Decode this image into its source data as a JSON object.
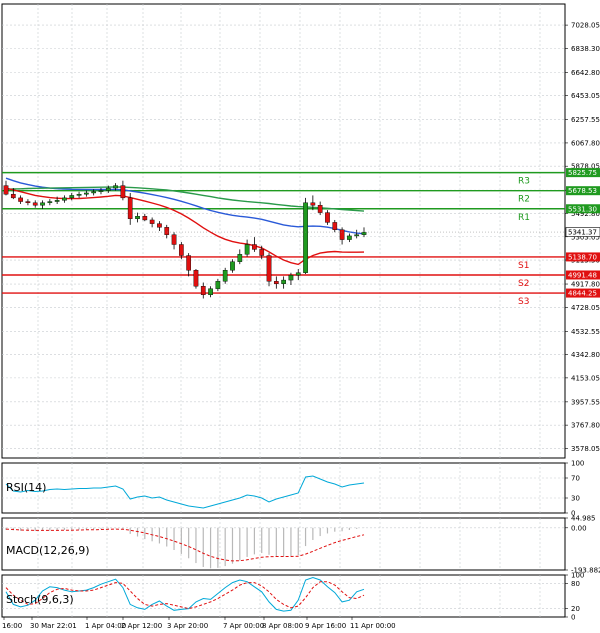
{
  "chart_data": [
    {
      "type": "candlestick",
      "panel": "price",
      "ylim": [
        3500,
        7200
      ],
      "y_ticks": [
        "7028.05",
        "6838.30",
        "6642.80",
        "6453.05",
        "6257.55",
        "6067.80",
        "5878.05",
        "5682.55",
        "5492.80",
        "5303.05",
        "5113.30",
        "4917.80",
        "4728.05",
        "4532.55",
        "4342.80",
        "4153.05",
        "3957.55",
        "3767.80",
        "3578.05"
      ],
      "x_ticks": [
        "16:00",
        "30 Mar 22:01",
        "1 Apr 04:00",
        "2 Apr 12:00",
        "3 Apr 20:00",
        "7 Apr 00:00",
        "8 Apr 08:00",
        "9 Apr 16:00",
        "11 Apr 00:00"
      ],
      "current_price": "5341.37",
      "grid": true,
      "levels": [
        {
          "name": "R3",
          "value": "5825.75",
          "color": "#1f9a1f"
        },
        {
          "name": "R2",
          "value": "5678.53",
          "color": "#1f9a1f"
        },
        {
          "name": "R1",
          "value": "5531.30",
          "color": "#1f9a1f"
        },
        {
          "name": "S1",
          "value": "5138.70",
          "color": "#e01010"
        },
        {
          "name": "S2",
          "value": "4991.48",
          "color": "#e01010"
        },
        {
          "name": "S3",
          "value": "4844.25",
          "color": "#e01010"
        }
      ],
      "candles": [
        [
          5720,
          5760,
          5640,
          5650
        ],
        [
          5650,
          5700,
          5610,
          5620
        ],
        [
          5620,
          5640,
          5570,
          5590
        ],
        [
          5590,
          5610,
          5560,
          5580
        ],
        [
          5580,
          5600,
          5540,
          5560
        ],
        [
          5560,
          5600,
          5530,
          5580
        ],
        [
          5580,
          5610,
          5560,
          5590
        ],
        [
          5590,
          5630,
          5570,
          5600
        ],
        [
          5600,
          5640,
          5580,
          5620
        ],
        [
          5620,
          5660,
          5600,
          5640
        ],
        [
          5640,
          5670,
          5620,
          5650
        ],
        [
          5650,
          5680,
          5630,
          5660
        ],
        [
          5660,
          5690,
          5640,
          5670
        ],
        [
          5670,
          5700,
          5650,
          5680
        ],
        [
          5680,
          5720,
          5660,
          5700
        ],
        [
          5700,
          5740,
          5680,
          5720
        ],
        [
          5720,
          5760,
          5600,
          5620
        ],
        [
          5620,
          5660,
          5400,
          5450
        ],
        [
          5450,
          5500,
          5420,
          5470
        ],
        [
          5470,
          5490,
          5430,
          5440
        ],
        [
          5440,
          5460,
          5380,
          5410
        ],
        [
          5410,
          5430,
          5350,
          5380
        ],
        [
          5380,
          5400,
          5290,
          5320
        ],
        [
          5320,
          5340,
          5200,
          5240
        ],
        [
          5240,
          5260,
          5120,
          5150
        ],
        [
          5150,
          5170,
          4980,
          5030
        ],
        [
          5030,
          5040,
          4880,
          4900
        ],
        [
          4900,
          4930,
          4800,
          4830
        ],
        [
          4830,
          4900,
          4810,
          4880
        ],
        [
          4880,
          4960,
          4860,
          4940
        ],
        [
          4940,
          5050,
          4920,
          5030
        ],
        [
          5030,
          5120,
          5010,
          5100
        ],
        [
          5100,
          5200,
          5080,
          5160
        ],
        [
          5160,
          5280,
          5140,
          5240
        ],
        [
          5240,
          5300,
          5180,
          5200
        ],
        [
          5200,
          5230,
          5120,
          5150
        ],
        [
          5150,
          5170,
          4900,
          4940
        ],
        [
          4940,
          4980,
          4880,
          4920
        ],
        [
          4920,
          4980,
          4880,
          4950
        ],
        [
          4950,
          5010,
          4910,
          4990
        ],
        [
          4990,
          5040,
          4950,
          5010
        ],
        [
          5010,
          5620,
          5000,
          5580
        ],
        [
          5580,
          5640,
          5520,
          5560
        ],
        [
          5560,
          5590,
          5480,
          5500
        ],
        [
          5500,
          5520,
          5400,
          5420
        ],
        [
          5420,
          5440,
          5340,
          5360
        ],
        [
          5360,
          5380,
          5240,
          5280
        ],
        [
          5280,
          5330,
          5260,
          5310
        ],
        [
          5310,
          5360,
          5290,
          5320
        ],
        [
          5320,
          5380,
          5300,
          5340
        ]
      ],
      "series": [
        {
          "name": "",
          "color": "#2a5ad8",
          "values": [
            5780,
            5760,
            5742,
            5728,
            5716,
            5707,
            5700,
            5695,
            5692,
            5690,
            5689,
            5688,
            5688,
            5688,
            5688,
            5688,
            5686,
            5677,
            5668,
            5658,
            5647,
            5635,
            5622,
            5608,
            5592,
            5574,
            5555,
            5535,
            5517,
            5502,
            5489,
            5478,
            5470,
            5463,
            5455,
            5445,
            5430,
            5414,
            5400,
            5390,
            5384,
            5388,
            5390,
            5388,
            5381,
            5370,
            5355,
            5343,
            5333,
            5327
          ]
        },
        {
          "name": "",
          "color": "#2a9a4a",
          "values": [
            5690,
            5692,
            5694,
            5696,
            5698,
            5699,
            5700,
            5701,
            5702,
            5703,
            5704,
            5705,
            5706,
            5707,
            5708,
            5709,
            5708,
            5705,
            5702,
            5698,
            5694,
            5689,
            5684,
            5677,
            5669,
            5660,
            5650,
            5640,
            5630,
            5620,
            5611,
            5603,
            5596,
            5590,
            5585,
            5580,
            5574,
            5567,
            5560,
            5554,
            5549,
            5546,
            5543,
            5539,
            5535,
            5530,
            5525,
            5520,
            5516,
            5512
          ]
        },
        {
          "name": "",
          "color": "#e01010",
          "values": [
            5700,
            5685,
            5670,
            5655,
            5640,
            5630,
            5622,
            5617,
            5614,
            5614,
            5615,
            5618,
            5622,
            5627,
            5633,
            5640,
            5637,
            5622,
            5608,
            5594,
            5578,
            5562,
            5542,
            5518,
            5489,
            5455,
            5417,
            5376,
            5340,
            5308,
            5282,
            5264,
            5251,
            5243,
            5230,
            5212,
            5180,
            5145,
            5114,
            5092,
            5078,
            5120,
            5150,
            5170,
            5179,
            5183,
            5178,
            5177,
            5177,
            5178
          ]
        }
      ]
    },
    {
      "type": "line",
      "panel": "RSI(14)",
      "title": "RSI(14)",
      "ylim": [
        0,
        100
      ],
      "y_ticks": [
        "100",
        "70",
        "30",
        "0"
      ],
      "series": [
        {
          "name": "",
          "color": "#00a8d8",
          "values": [
            58,
            44,
            42,
            45,
            43,
            44,
            47,
            48,
            47,
            48,
            49,
            49,
            50,
            50,
            52,
            54,
            48,
            28,
            32,
            34,
            30,
            32,
            26,
            22,
            18,
            14,
            12,
            10,
            14,
            18,
            22,
            26,
            30,
            36,
            34,
            30,
            22,
            28,
            32,
            36,
            40,
            72,
            74,
            68,
            62,
            58,
            52,
            56,
            58,
            60
          ]
        }
      ]
    },
    {
      "type": "bar",
      "panel": "MACD(12,26,9)",
      "title": "MACD(12,26,9)",
      "ylim": [
        -193.882,
        44.985
      ],
      "y_ticks": [
        "44.985",
        "0.00",
        "-193.882"
      ],
      "values": [
        -10,
        -12,
        -14,
        -15,
        -15,
        -14,
        -13,
        -12,
        -10,
        -9,
        -8,
        -7,
        -6,
        -5,
        -3,
        -2,
        -8,
        -28,
        -40,
        -52,
        -62,
        -72,
        -86,
        -102,
        -120,
        -140,
        -162,
        -180,
        -186,
        -184,
        -176,
        -165,
        -150,
        -134,
        -122,
        -116,
        -124,
        -130,
        -132,
        -130,
        -126,
        -84,
        -56,
        -38,
        -26,
        -18,
        -16,
        -10,
        -5,
        -1
      ],
      "series": [
        {
          "name": "",
          "color": "#e01010",
          "values": [
            -6,
            -8,
            -10,
            -11,
            -12,
            -12,
            -12,
            -12,
            -11,
            -11,
            -10,
            -9,
            -9,
            -8,
            -7,
            -6,
            -7,
            -11,
            -17,
            -24,
            -32,
            -40,
            -50,
            -61,
            -73,
            -86,
            -101,
            -117,
            -131,
            -141,
            -148,
            -152,
            -151,
            -147,
            -141,
            -135,
            -133,
            -132,
            -132,
            -132,
            -131,
            -121,
            -108,
            -94,
            -81,
            -68,
            -58,
            -49,
            -40,
            -32
          ]
        }
      ]
    },
    {
      "type": "line",
      "panel": "Stoch(9,6,3)",
      "title": "Stoch(9,6,3)",
      "ylim": [
        0,
        100
      ],
      "y_ticks": [
        "100",
        "80",
        "20",
        "0"
      ],
      "series": [
        {
          "name": "",
          "color": "#00a8d8",
          "values": [
            60,
            30,
            24,
            28,
            40,
            62,
            72,
            70,
            64,
            60,
            62,
            64,
            70,
            78,
            84,
            90,
            70,
            30,
            22,
            18,
            30,
            38,
            26,
            16,
            18,
            20,
            36,
            44,
            42,
            56,
            70,
            82,
            88,
            84,
            72,
            60,
            36,
            18,
            14,
            16,
            40,
            88,
            94,
            88,
            72,
            58,
            36,
            40,
            60,
            66
          ]
        },
        {
          "name": "",
          "color": "#e01010",
          "values": [
            70,
            52,
            40,
            30,
            32,
            44,
            58,
            66,
            68,
            64,
            62,
            62,
            64,
            70,
            76,
            82,
            80,
            62,
            44,
            30,
            26,
            30,
            32,
            28,
            24,
            20,
            24,
            30,
            36,
            44,
            54,
            64,
            76,
            82,
            82,
            74,
            60,
            42,
            30,
            22,
            26,
            46,
            70,
            84,
            84,
            76,
            60,
            46,
            44,
            52
          ]
        }
      ]
    }
  ]
}
